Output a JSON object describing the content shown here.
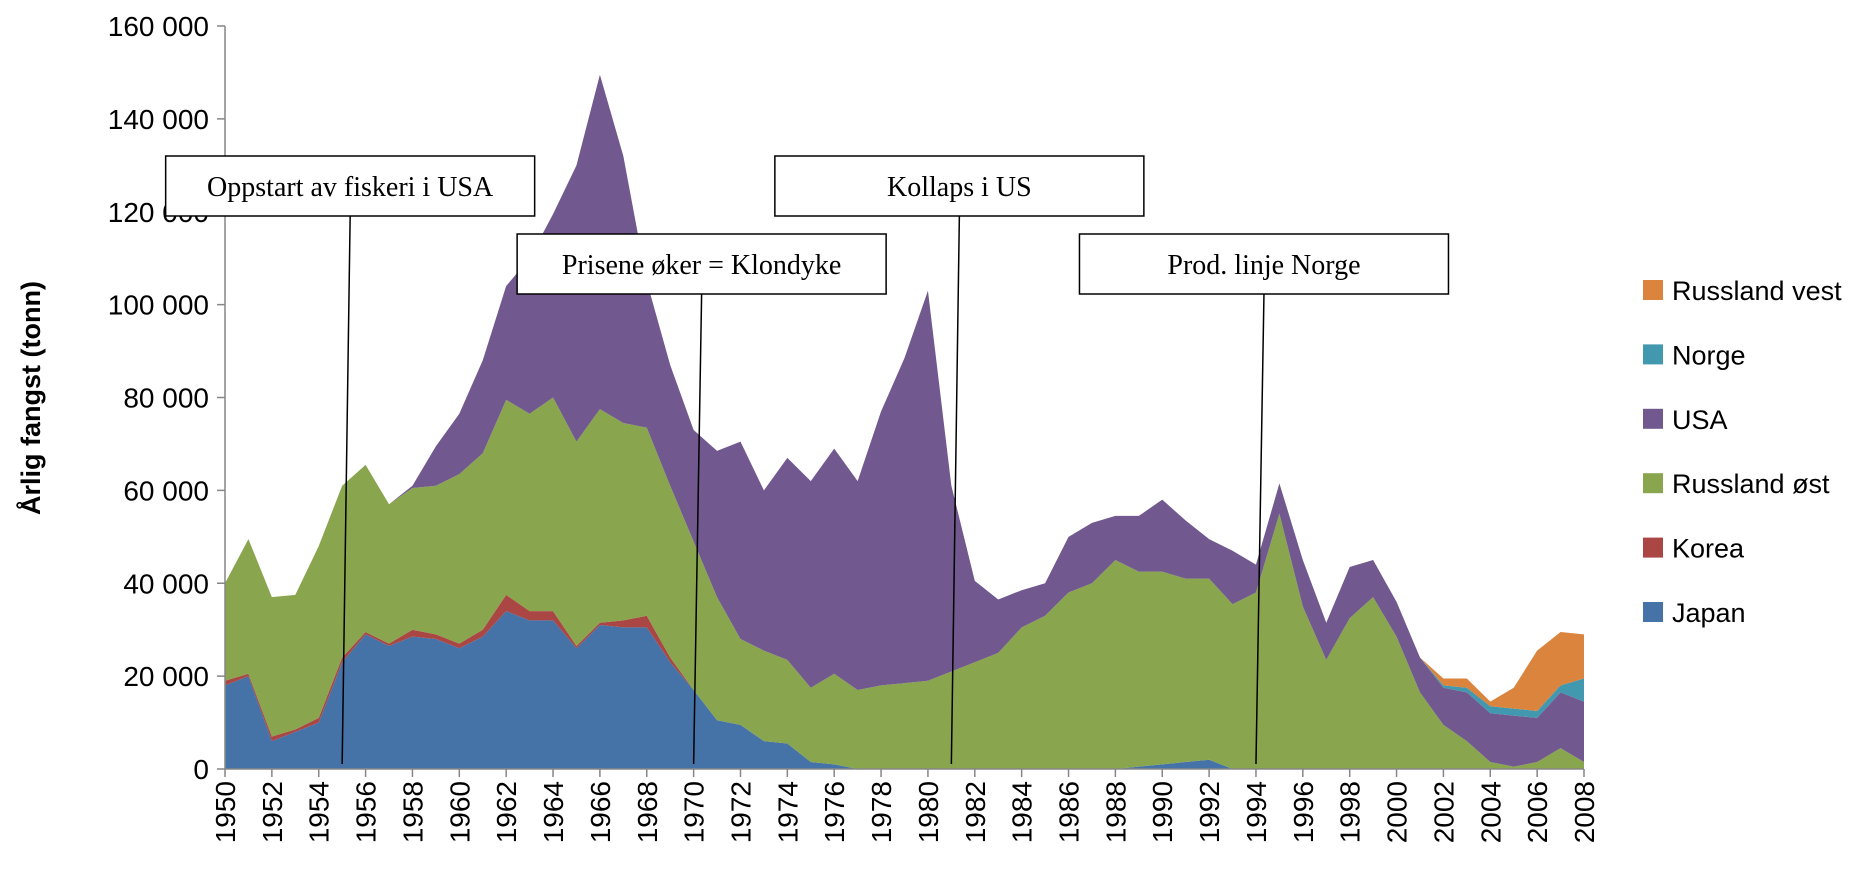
{
  "chart_data": {
    "type": "stacked_area",
    "y_label": "Årlig fangst  (tonn)",
    "x": [
      1950,
      1951,
      1952,
      1953,
      1954,
      1955,
      1956,
      1957,
      1958,
      1959,
      1960,
      1961,
      1962,
      1963,
      1964,
      1965,
      1966,
      1967,
      1968,
      1969,
      1970,
      1971,
      1972,
      1973,
      1974,
      1975,
      1976,
      1977,
      1978,
      1979,
      1980,
      1981,
      1982,
      1983,
      1984,
      1985,
      1986,
      1987,
      1988,
      1989,
      1990,
      1991,
      1992,
      1993,
      1994,
      1995,
      1996,
      1997,
      1998,
      1999,
      2000,
      2001,
      2002,
      2003,
      2004,
      2005,
      2006,
      2007,
      2008
    ],
    "xlim": [
      1950,
      2008
    ],
    "xticks": [
      1950,
      1952,
      1954,
      1956,
      1958,
      1960,
      1962,
      1964,
      1966,
      1968,
      1970,
      1972,
      1974,
      1976,
      1978,
      1980,
      1982,
      1984,
      1986,
      1988,
      1990,
      1992,
      1994,
      1996,
      1998,
      2000,
      2002,
      2004,
      2006,
      2008
    ],
    "ylim": [
      0,
      160000
    ],
    "yticks": [
      0,
      {
        "value": 20000,
        "label": "20 000"
      },
      {
        "value": 40000,
        "label": "40 000"
      },
      {
        "value": 60000,
        "label": "60 000"
      },
      {
        "value": 80000,
        "label": "80 000"
      },
      {
        "value": 100000,
        "label": "100 000"
      },
      {
        "value": 120000,
        "label": "120 000"
      },
      {
        "value": 140000,
        "label": "140 000"
      },
      {
        "value": 160000,
        "label": "160 000"
      }
    ],
    "legend_position": "right",
    "series": [
      {
        "name": "Japan",
        "color": "#4572a7",
        "values": [
          18000,
          20000,
          6000,
          8000,
          10000,
          23000,
          29000,
          26500,
          28500,
          28000,
          26000,
          28500,
          34000,
          32000,
          32000,
          26000,
          31000,
          30500,
          30500,
          23000,
          17000,
          10500,
          9500,
          6000,
          5500,
          1500,
          1000,
          0,
          0,
          0,
          0,
          0,
          0,
          0,
          0,
          0,
          0,
          0,
          0,
          500,
          1000,
          1500,
          2000,
          0,
          0,
          0,
          0,
          0,
          0,
          0,
          0,
          0,
          0,
          0,
          0,
          0,
          0,
          0,
          0
        ]
      },
      {
        "name": "Korea",
        "color": "#aa4643",
        "values": [
          1000,
          500,
          1000,
          500,
          1000,
          1000,
          500,
          500,
          1500,
          1000,
          1000,
          1500,
          3500,
          2000,
          2000,
          500,
          500,
          1500,
          2500,
          1000,
          0,
          0,
          0,
          0,
          0,
          0,
          0,
          0,
          0,
          0,
          0,
          0,
          0,
          0,
          0,
          0,
          0,
          0,
          0,
          0,
          0,
          0,
          0,
          0,
          0,
          0,
          0,
          0,
          0,
          0,
          0,
          0,
          0,
          0,
          0,
          0,
          0,
          0,
          0
        ]
      },
      {
        "name": "Russland øst",
        "color": "#89a54e",
        "values": [
          21000,
          29000,
          30000,
          29000,
          37000,
          37000,
          36000,
          30000,
          30500,
          32000,
          36500,
          38000,
          42000,
          42500,
          46000,
          44000,
          46000,
          42500,
          40500,
          37000,
          32000,
          26500,
          18500,
          19500,
          18000,
          16000,
          19500,
          17000,
          18000,
          18500,
          19000,
          21000,
          23000,
          25000,
          30500,
          33000,
          38000,
          40000,
          45000,
          42000,
          41500,
          39500,
          39000,
          35500,
          38000,
          55000,
          35000,
          23500,
          32500,
          37000,
          28500,
          16500,
          9500,
          6000,
          1500,
          500,
          1500,
          4500,
          1500
        ]
      },
      {
        "name": "USA",
        "color": "#71588f",
        "values": [
          0,
          0,
          0,
          0,
          0,
          0,
          0,
          0,
          500,
          8500,
          13000,
          20000,
          24500,
          33500,
          39500,
          59500,
          72000,
          57500,
          31500,
          26000,
          24000,
          31500,
          42500,
          34500,
          43500,
          44500,
          48500,
          45000,
          59000,
          70000,
          84000,
          40000,
          17500,
          11500,
          8000,
          7000,
          12000,
          13000,
          9500,
          12000,
          15500,
          12500,
          8500,
          11500,
          6000,
          6500,
          10000,
          8000,
          11000,
          8000,
          7500,
          7500,
          8000,
          10500,
          10500,
          11000,
          9500,
          12000,
          13000
        ]
      },
      {
        "name": "Norge",
        "color": "#4198af",
        "values": [
          0,
          0,
          0,
          0,
          0,
          0,
          0,
          0,
          0,
          0,
          0,
          0,
          0,
          0,
          0,
          0,
          0,
          0,
          0,
          0,
          0,
          0,
          0,
          0,
          0,
          0,
          0,
          0,
          0,
          0,
          0,
          0,
          0,
          0,
          0,
          0,
          0,
          0,
          0,
          0,
          0,
          0,
          0,
          0,
          0,
          0,
          0,
          0,
          0,
          0,
          0,
          0,
          500,
          1000,
          1500,
          1500,
          1500,
          1500,
          5000
        ]
      },
      {
        "name": "Russland vest",
        "color": "#db843d",
        "values": [
          0,
          0,
          0,
          0,
          0,
          0,
          0,
          0,
          0,
          0,
          0,
          0,
          0,
          0,
          0,
          0,
          0,
          0,
          0,
          0,
          0,
          0,
          0,
          0,
          0,
          0,
          0,
          0,
          0,
          0,
          0,
          0,
          0,
          0,
          0,
          0,
          0,
          0,
          0,
          0,
          0,
          0,
          0,
          0,
          0,
          0,
          0,
          0,
          0,
          0,
          0,
          0,
          1500,
          2000,
          1000,
          4500,
          13000,
          11500,
          9500
        ]
      }
    ],
    "annotations": [
      {
        "text": "Oppstart av fiskeri i USA",
        "x": 1955
      },
      {
        "text": "Prisene øker = Klondyke",
        "x": 1970
      },
      {
        "text": "Kollaps i US",
        "x": 1981
      },
      {
        "text": "Prod. linje Norge",
        "x": 1994
      }
    ]
  }
}
